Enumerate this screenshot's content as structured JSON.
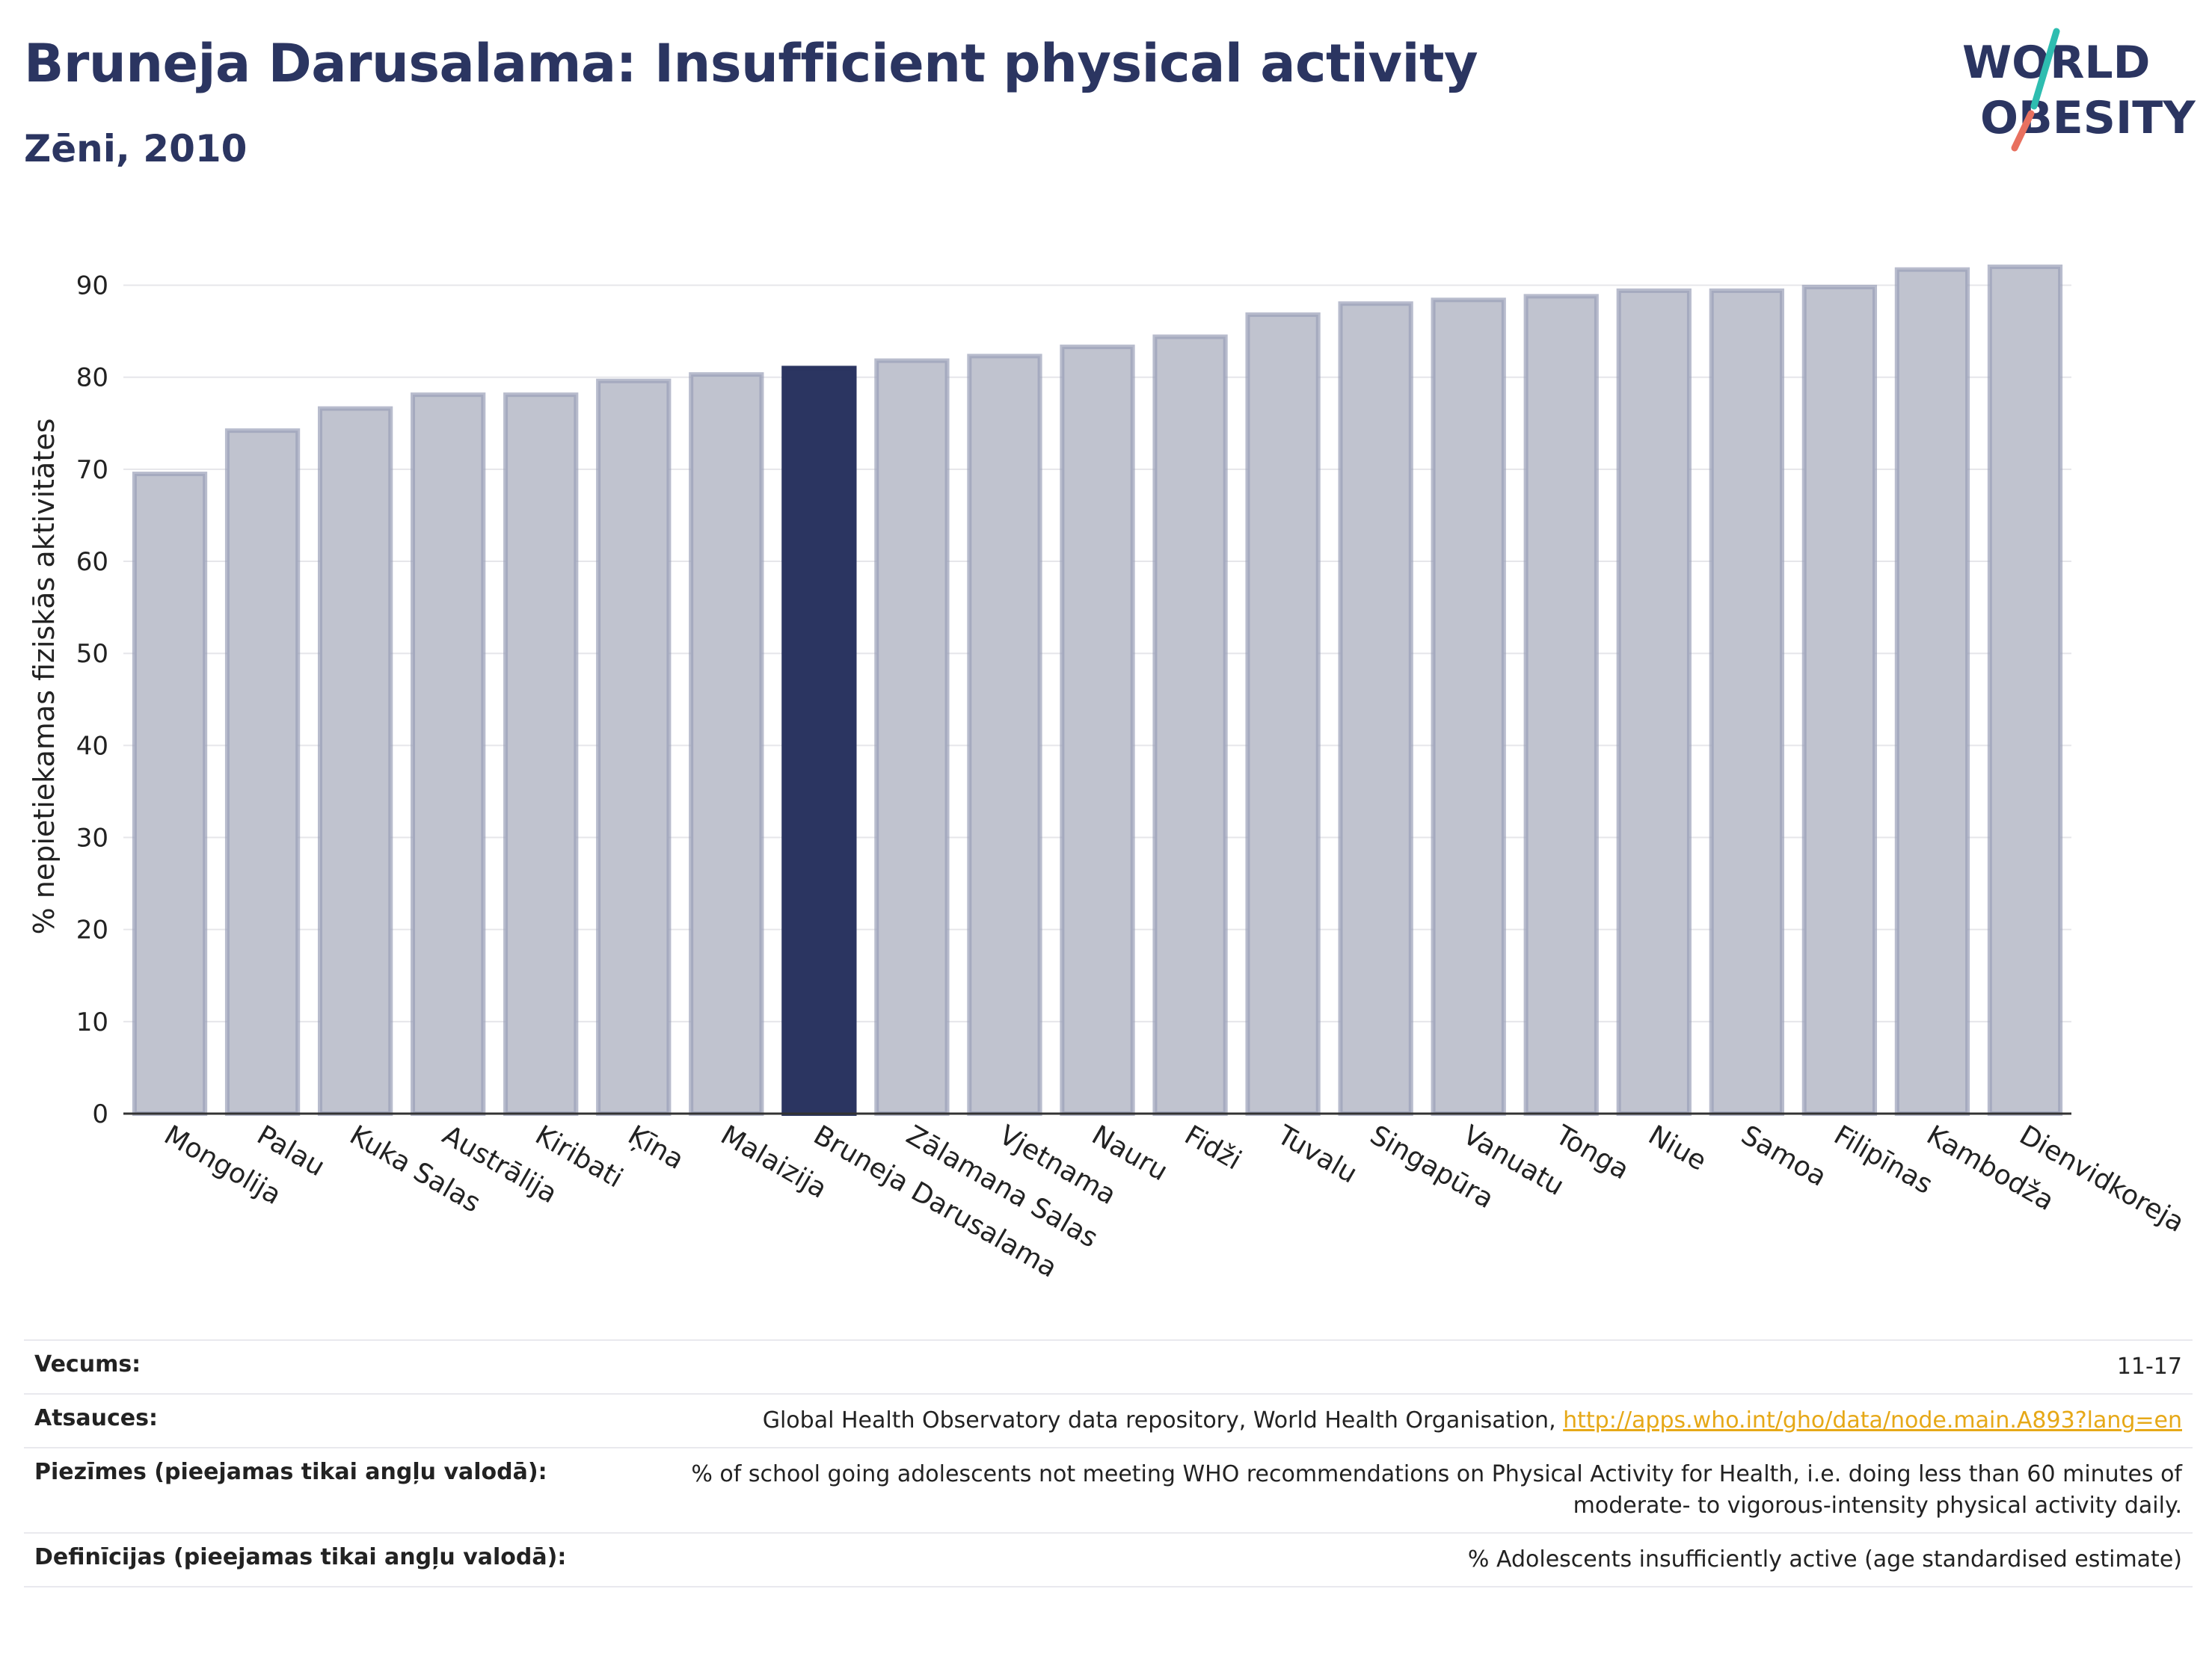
{
  "header": {
    "title": "Bruneja Darusalama: Insufficient physical activity",
    "subtitle": "Zēni, 2010"
  },
  "logo": {
    "line1": "WORLD",
    "line2": "OBESITY"
  },
  "chart_data": {
    "type": "bar",
    "ylabel": "% nepietiekamas fiziskās aktivitātes",
    "xlabel": "",
    "ylim": [
      0,
      95
    ],
    "yticks": [
      0,
      10,
      20,
      30,
      40,
      50,
      60,
      70,
      80,
      90
    ],
    "grid": true,
    "highlight": "Bruneja Darusalama",
    "colors": {
      "bar": "#c0c3cf",
      "bar_edge": "#9aa0b8",
      "highlight": "#2b3561"
    },
    "categories": [
      "Mongolija",
      "Palau",
      "Kuka Salas",
      "Austrālija",
      "Kiribati",
      "Ķīna",
      "Malaizija",
      "Bruneja Darusalama",
      "Zālamana Salas",
      "Vjetnama",
      "Nauru",
      "Fidži",
      "Tuvalu",
      "Singapūra",
      "Vanuatu",
      "Tonga",
      "Niue",
      "Samoa",
      "Filipīnas",
      "Kambodža",
      "Dienvidkoreja"
    ],
    "values": [
      69.5,
      74.2,
      76.6,
      78.1,
      78.1,
      79.6,
      80.3,
      81.0,
      81.8,
      82.3,
      83.3,
      84.4,
      86.8,
      88.0,
      88.4,
      88.8,
      89.4,
      89.4,
      89.8,
      91.7,
      92.0
    ]
  },
  "meta": {
    "age_label": "Vecums:",
    "age_value": "11-17",
    "sources_label": "Atsauces:",
    "sources_text": "Global Health Observatory data repository, World Health Organisation, ",
    "sources_link": "http://apps.who.int/gho/data/node.main.A893?lang=en",
    "notes_label": "Piezīmes (pieejamas tikai angļu valodā):",
    "notes_value": "% of school going adolescents not meeting WHO recommendations on Physical Activity for Health, i.e. doing less than 60 minutes of moderate- to vigorous-intensity physical activity daily.",
    "definitions_label": "Definīcijas (pieejamas tikai angļu valodā):",
    "definitions_value": "% Adolescents insufficiently active (age standardised estimate)"
  }
}
